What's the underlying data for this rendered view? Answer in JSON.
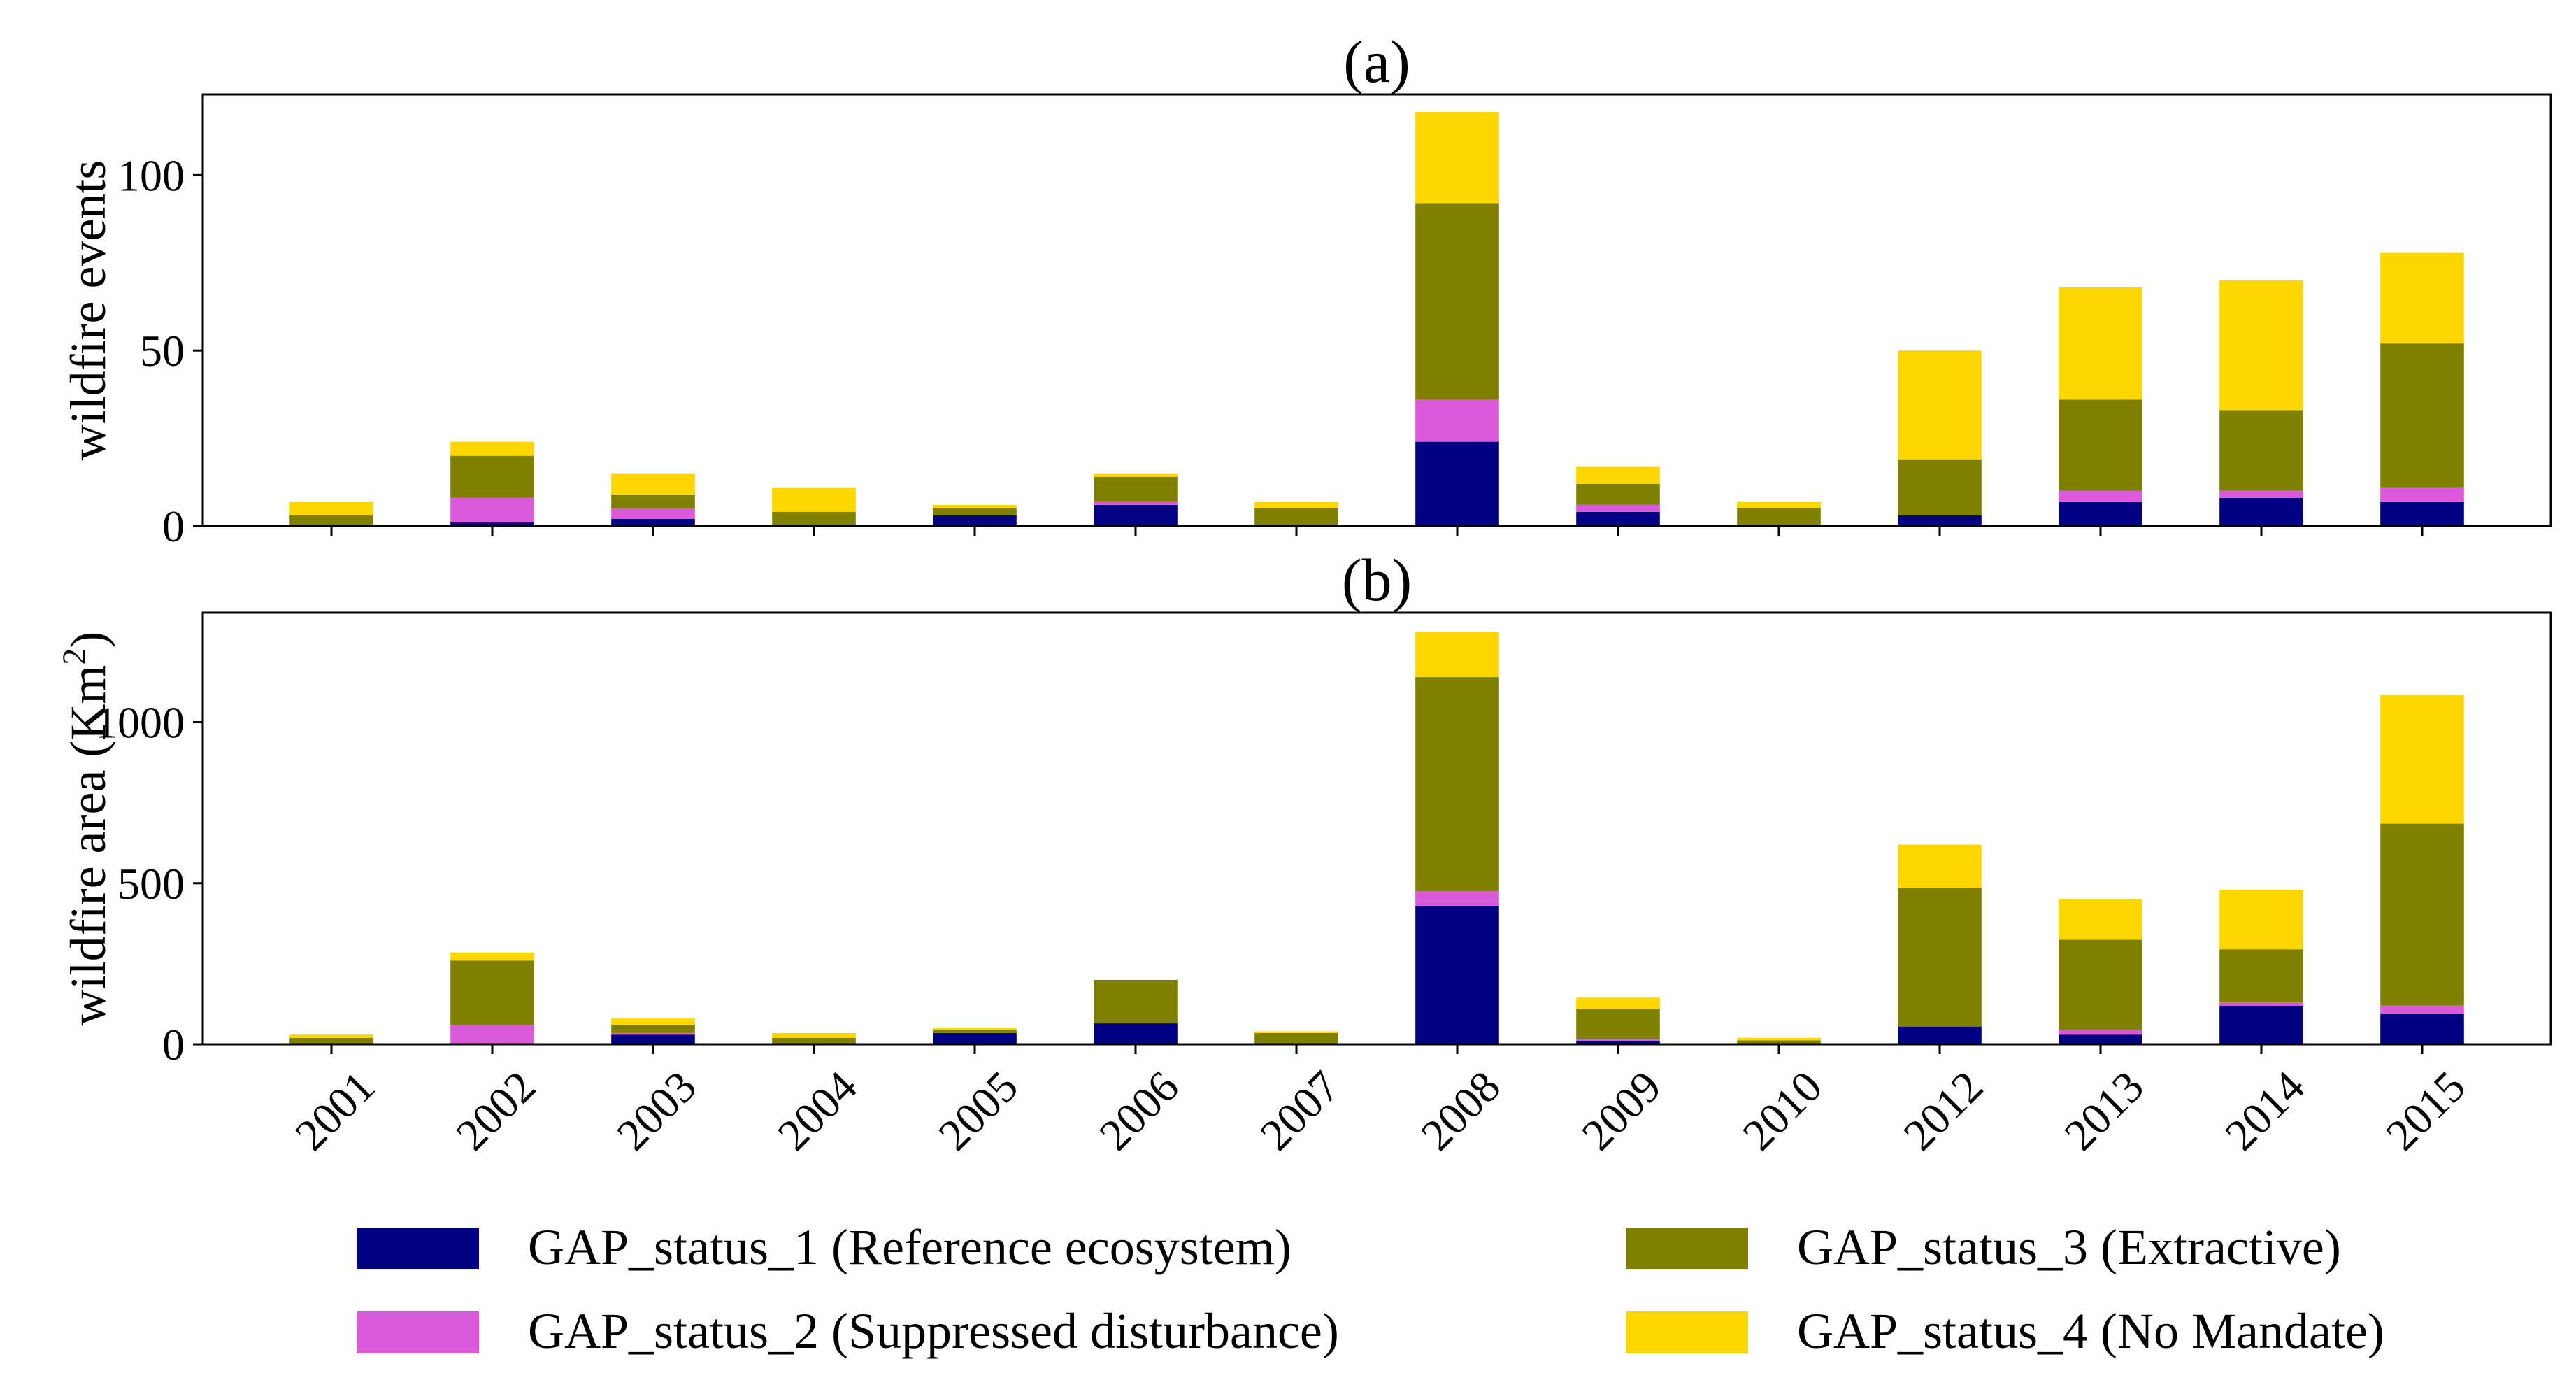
{
  "colors": {
    "GAP_status_1": "#000080",
    "GAP_status_2": "#DA5ADA",
    "GAP_status_3": "#808000",
    "GAP_status_4": "#FFD700"
  },
  "chart_data": [
    {
      "type": "bar",
      "stacked": true,
      "title": "(a)",
      "xlabel": "",
      "ylabel": "wildfire events",
      "ylim": [
        0,
        123
      ],
      "yticks": [
        0,
        50,
        100
      ],
      "categories": [
        "2001",
        "2002",
        "2003",
        "2004",
        "2005",
        "2006",
        "2007",
        "2008",
        "2009",
        "2010",
        "2012",
        "2013",
        "2014",
        "2015"
      ],
      "series": [
        {
          "name": "GAP_status_1 (Reference ecosystem)",
          "color_key": "GAP_status_1",
          "values": [
            0,
            1,
            2,
            0,
            3,
            6,
            0,
            24,
            4,
            0,
            3,
            7,
            8,
            7
          ]
        },
        {
          "name": "GAP_status_2 (Suppressed disturbance)",
          "color_key": "GAP_status_2",
          "values": [
            0,
            7,
            3,
            0,
            0,
            1,
            0,
            12,
            2,
            0,
            0,
            3,
            2,
            4
          ]
        },
        {
          "name": "GAP_status_3 (Extractive)",
          "color_key": "GAP_status_3",
          "values": [
            3,
            12,
            4,
            4,
            2,
            7,
            5,
            56,
            6,
            5,
            16,
            26,
            23,
            41
          ]
        },
        {
          "name": "GAP_status_4 (No Mandate)",
          "color_key": "GAP_status_4",
          "values": [
            4,
            4,
            6,
            7,
            1,
            1,
            2,
            26,
            5,
            2,
            31,
            32,
            37,
            26
          ]
        }
      ]
    },
    {
      "type": "bar",
      "stacked": true,
      "title": "(b)",
      "xlabel": "",
      "ylabel": "wildfire area (Km",
      "ylabel_superscript": "2",
      "ylabel_suffix": ")",
      "ylim": [
        0,
        1340
      ],
      "yticks": [
        0,
        500,
        1000
      ],
      "categories": [
        "2001",
        "2002",
        "2003",
        "2004",
        "2005",
        "2006",
        "2007",
        "2008",
        "2009",
        "2010",
        "2012",
        "2013",
        "2014",
        "2015"
      ],
      "series": [
        {
          "name": "GAP_status_1 (Reference ecosystem)",
          "color_key": "GAP_status_1",
          "values": [
            0,
            0,
            30,
            0,
            35,
            65,
            0,
            430,
            10,
            0,
            55,
            30,
            120,
            95
          ]
        },
        {
          "name": "GAP_status_2 (Suppressed disturbance)",
          "color_key": "GAP_status_2",
          "values": [
            0,
            60,
            5,
            0,
            0,
            0,
            0,
            45,
            5,
            0,
            0,
            15,
            10,
            25
          ]
        },
        {
          "name": "GAP_status_3 (Extractive)",
          "color_key": "GAP_status_3",
          "values": [
            20,
            200,
            25,
            20,
            10,
            135,
            35,
            665,
            95,
            12,
            430,
            280,
            165,
            565
          ]
        },
        {
          "name": "GAP_status_4 (No Mandate)",
          "color_key": "GAP_status_4",
          "values": [
            10,
            25,
            20,
            15,
            5,
            0,
            5,
            140,
            35,
            8,
            135,
            125,
            185,
            400
          ]
        }
      ]
    }
  ],
  "legend": [
    {
      "label": "GAP_status_1 (Reference ecosystem)",
      "color_key": "GAP_status_1"
    },
    {
      "label": "GAP_status_3 (Extractive)",
      "color_key": "GAP_status_3"
    },
    {
      "label": "GAP_status_2 (Suppressed disturbance)",
      "color_key": "GAP_status_2"
    },
    {
      "label": "GAP_status_4 (No Mandate)",
      "color_key": "GAP_status_4"
    }
  ]
}
